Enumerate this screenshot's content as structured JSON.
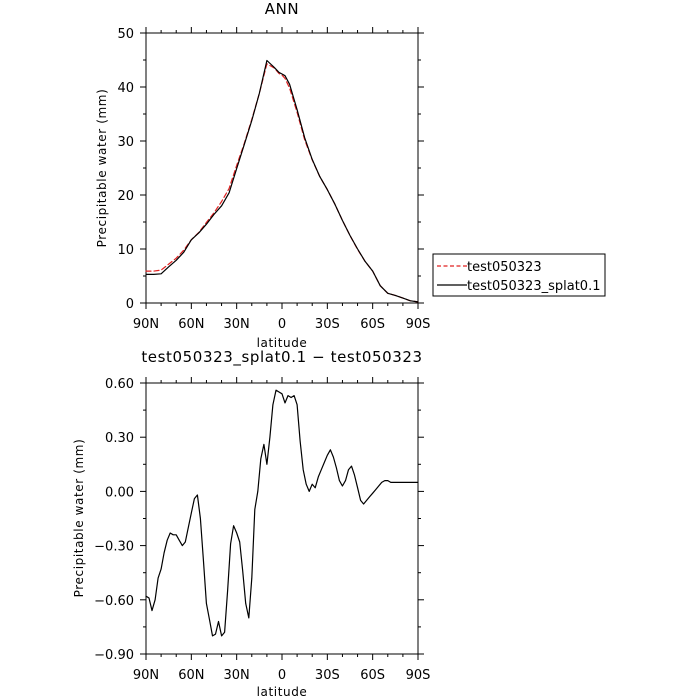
{
  "chart_data": [
    {
      "type": "line",
      "title": "ANN",
      "xlabel": "latitude",
      "ylabel": "Precipitable water (mm)",
      "x_ticks": [
        "90N",
        "60N",
        "30N",
        "0",
        "30S",
        "60S",
        "90S"
      ],
      "y_ticks": [
        "0",
        "10",
        "20",
        "30",
        "40",
        "50"
      ],
      "xlim": [
        90,
        -90
      ],
      "ylim": [
        0,
        50
      ],
      "legend": {
        "placement": "right-outside",
        "entries": [
          "test050323",
          "test050323_splat0.1"
        ]
      },
      "series": [
        {
          "name": "test050323",
          "color": "#e02020",
          "style": "dashed",
          "x": [
            90,
            85,
            80,
            75,
            70,
            65,
            60,
            55,
            50,
            45,
            40,
            35,
            30,
            25,
            20,
            15,
            10,
            5,
            2,
            0,
            -2,
            -5,
            -10,
            -15,
            -20,
            -25,
            -30,
            -35,
            -40,
            -45,
            -50,
            -55,
            -60,
            -65,
            -70,
            -75,
            -80,
            -85,
            -90
          ],
          "y": [
            5.9,
            5.9,
            6.1,
            7.2,
            8.3,
            9.8,
            11.7,
            13.1,
            14.9,
            16.7,
            18.8,
            21.2,
            25.5,
            29.5,
            34.0,
            38.8,
            44.3,
            43.5,
            42.5,
            42.2,
            41.6,
            39.8,
            35.3,
            30.2,
            26.5,
            23.4,
            21.0,
            18.3,
            15.3,
            12.5,
            9.9,
            7.7,
            5.9,
            3.2,
            1.8,
            1.4,
            0.9,
            0.4,
            0.2
          ]
        },
        {
          "name": "test050323_splat0.1",
          "color": "#000000",
          "style": "solid",
          "x": [
            90,
            85,
            80,
            75,
            70,
            65,
            60,
            55,
            50,
            45,
            40,
            35,
            30,
            25,
            20,
            15,
            10,
            5,
            2,
            0,
            -2,
            -5,
            -10,
            -15,
            -20,
            -25,
            -30,
            -35,
            -40,
            -45,
            -50,
            -55,
            -60,
            -65,
            -70,
            -75,
            -80,
            -85,
            -90
          ],
          "y": [
            5.3,
            5.3,
            5.4,
            6.7,
            7.9,
            9.4,
            11.7,
            13.0,
            14.6,
            16.4,
            18.0,
            20.4,
            24.9,
            29.3,
            33.8,
            38.8,
            44.9,
            43.6,
            42.7,
            42.4,
            42.1,
            40.5,
            35.8,
            30.6,
            26.6,
            23.4,
            21.0,
            18.3,
            15.3,
            12.5,
            10.0,
            7.7,
            5.9,
            3.2,
            1.8,
            1.4,
            0.9,
            0.4,
            0.2
          ]
        }
      ]
    },
    {
      "type": "line",
      "title": "test050323_splat0.1 − test050323",
      "xlabel": "latitude",
      "ylabel": "Precipitable water (mm)",
      "x_ticks": [
        "90N",
        "60N",
        "30N",
        "0",
        "30S",
        "60S",
        "90S"
      ],
      "y_ticks": [
        "0.60",
        "0.30",
        "0.00",
        "−0.30",
        "−0.60",
        "−0.90"
      ],
      "y_tick_values": [
        0.6,
        0.3,
        0.0,
        -0.3,
        -0.6,
        -0.9
      ],
      "xlim": [
        90,
        -90
      ],
      "ylim": [
        -0.9,
        0.6
      ],
      "series": [
        {
          "color": "#000000",
          "style": "solid",
          "x": [
            90,
            88,
            86,
            84,
            82,
            80,
            78,
            76,
            74,
            72,
            70,
            68,
            66,
            64,
            62,
            60,
            58,
            56,
            54,
            52,
            50,
            48,
            46,
            44,
            42,
            40,
            38,
            36,
            34,
            32,
            30,
            28,
            26,
            24,
            22,
            20,
            18,
            16,
            14,
            12,
            10,
            8,
            6,
            4,
            2,
            0,
            -2,
            -4,
            -6,
            -8,
            -10,
            -12,
            -14,
            -16,
            -18,
            -20,
            -22,
            -24,
            -26,
            -28,
            -30,
            -32,
            -34,
            -36,
            -38,
            -40,
            -42,
            -44,
            -46,
            -48,
            -50,
            -52,
            -54,
            -56,
            -58,
            -60,
            -62,
            -64,
            -66,
            -68,
            -70,
            -72,
            -74,
            -76,
            -78,
            -80,
            -82,
            -84,
            -86,
            -88,
            -90
          ],
          "y": [
            -0.58,
            -0.59,
            -0.66,
            -0.6,
            -0.48,
            -0.43,
            -0.34,
            -0.27,
            -0.23,
            -0.24,
            -0.24,
            -0.27,
            -0.3,
            -0.28,
            -0.2,
            -0.12,
            -0.04,
            -0.02,
            -0.15,
            -0.38,
            -0.62,
            -0.71,
            -0.8,
            -0.79,
            -0.72,
            -0.8,
            -0.78,
            -0.55,
            -0.29,
            -0.19,
            -0.23,
            -0.28,
            -0.44,
            -0.62,
            -0.7,
            -0.48,
            -0.1,
            0.0,
            0.18,
            0.26,
            0.15,
            0.3,
            0.48,
            0.56,
            0.55,
            0.54,
            0.49,
            0.53,
            0.52,
            0.53,
            0.48,
            0.28,
            0.12,
            0.04,
            0.0,
            0.04,
            0.02,
            0.08,
            0.12,
            0.16,
            0.2,
            0.23,
            0.19,
            0.13,
            0.06,
            0.03,
            0.06,
            0.12,
            0.14,
            0.09,
            0.02,
            -0.05,
            -0.07,
            -0.05,
            -0.03,
            -0.01,
            0.01,
            0.03,
            0.05,
            0.06,
            0.06,
            0.05,
            0.05,
            0.05,
            0.05,
            0.05,
            0.05,
            0.05,
            0.05,
            0.05,
            0.05
          ]
        }
      ]
    }
  ]
}
